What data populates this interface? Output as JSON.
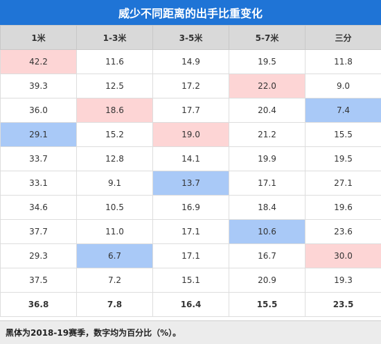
{
  "chart_data": {
    "type": "table",
    "title": "威少不同距离的出手比重变化",
    "columns": [
      "1米",
      "1-3米",
      "3-5米",
      "5-7米",
      "三分"
    ],
    "rows": [
      [
        "42.2",
        "11.6",
        "14.9",
        "19.5",
        "11.8"
      ],
      [
        "39.3",
        "12.5",
        "17.2",
        "22.0",
        "9.0"
      ],
      [
        "36.0",
        "18.6",
        "17.7",
        "20.4",
        "7.4"
      ],
      [
        "29.1",
        "15.2",
        "19.0",
        "21.2",
        "15.5"
      ],
      [
        "33.7",
        "12.8",
        "14.1",
        "19.9",
        "19.5"
      ],
      [
        "33.1",
        "9.1",
        "13.7",
        "17.1",
        "27.1"
      ],
      [
        "34.6",
        "10.5",
        "16.9",
        "18.4",
        "19.6"
      ],
      [
        "37.7",
        "11.0",
        "17.1",
        "10.6",
        "23.6"
      ],
      [
        "29.3",
        "6.7",
        "17.1",
        "16.7",
        "30.0"
      ],
      [
        "37.5",
        "7.2",
        "15.1",
        "20.9",
        "19.3"
      ],
      [
        "36.8",
        "7.8",
        "16.4",
        "15.5",
        "23.5"
      ]
    ],
    "highlights": {
      "max": [
        [
          0,
          0
        ],
        [
          2,
          1
        ],
        [
          3,
          2
        ],
        [
          1,
          3
        ],
        [
          8,
          4
        ]
      ],
      "min": [
        [
          3,
          0
        ],
        [
          8,
          1
        ],
        [
          5,
          2
        ],
        [
          7,
          3
        ],
        [
          2,
          4
        ]
      ]
    },
    "bold_rows": [
      10
    ],
    "footnote": "黑体为2018-19赛季，数字均为百分比（%）。"
  },
  "colors": {
    "header_bg": "#1f74d6",
    "column_header_bg": "#d9d9d9",
    "highlight_max": "#fdd5d5",
    "highlight_min": "#a9c9f7",
    "footnote_bg": "#ececec"
  }
}
